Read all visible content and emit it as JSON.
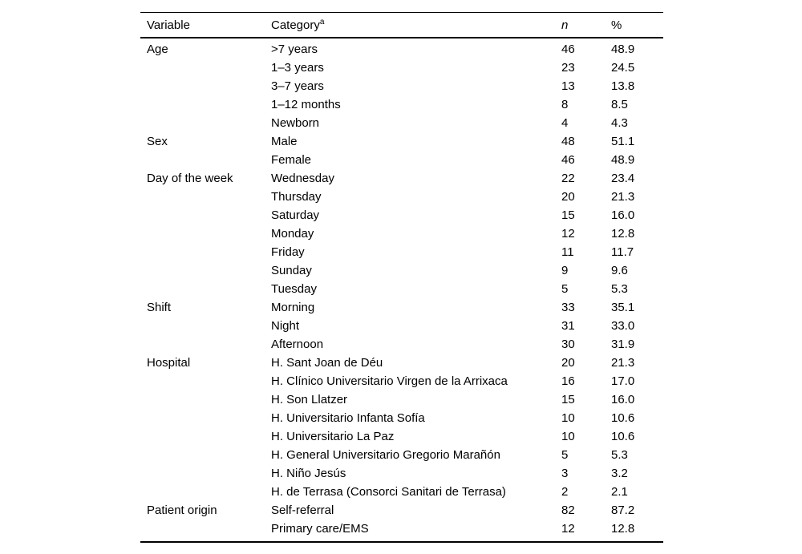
{
  "table": {
    "header": {
      "variable": "Variable",
      "category": "Category",
      "category_superscript": "a",
      "n": "n",
      "pct": "%"
    },
    "rows": [
      {
        "variable": "Age",
        "category": ">7 years",
        "n": "46",
        "pct": "48.9"
      },
      {
        "variable": "",
        "category": "1–3 years",
        "n": "23",
        "pct": "24.5"
      },
      {
        "variable": "",
        "category": "3–7 years",
        "n": "13",
        "pct": "13.8"
      },
      {
        "variable": "",
        "category": "1–12 months",
        "n": "8",
        "pct": "8.5"
      },
      {
        "variable": "",
        "category": "Newborn",
        "n": "4",
        "pct": "4.3"
      },
      {
        "variable": "Sex",
        "category": "Male",
        "n": "48",
        "pct": "51.1"
      },
      {
        "variable": "",
        "category": "Female",
        "n": "46",
        "pct": "48.9"
      },
      {
        "variable": "Day of the week",
        "category": "Wednesday",
        "n": "22",
        "pct": "23.4"
      },
      {
        "variable": "",
        "category": "Thursday",
        "n": "20",
        "pct": "21.3"
      },
      {
        "variable": "",
        "category": "Saturday",
        "n": "15",
        "pct": "16.0"
      },
      {
        "variable": "",
        "category": "Monday",
        "n": "12",
        "pct": "12.8"
      },
      {
        "variable": "",
        "category": "Friday",
        "n": "11",
        "pct": "11.7"
      },
      {
        "variable": "",
        "category": "Sunday",
        "n": "9",
        "pct": "9.6"
      },
      {
        "variable": "",
        "category": "Tuesday",
        "n": "5",
        "pct": "5.3"
      },
      {
        "variable": "Shift",
        "category": "Morning",
        "n": "33",
        "pct": "35.1"
      },
      {
        "variable": "",
        "category": "Night",
        "n": "31",
        "pct": "33.0"
      },
      {
        "variable": "",
        "category": "Afternoon",
        "n": "30",
        "pct": "31.9"
      },
      {
        "variable": "Hospital",
        "category": "H. Sant Joan de Déu",
        "n": "20",
        "pct": "21.3"
      },
      {
        "variable": "",
        "category": "H. Clínico Universitario Virgen de la Arrixaca",
        "n": "16",
        "pct": "17.0"
      },
      {
        "variable": "",
        "category": "H. Son Llatzer",
        "n": "15",
        "pct": "16.0"
      },
      {
        "variable": "",
        "category": "H. Universitario Infanta Sofía",
        "n": "10",
        "pct": "10.6"
      },
      {
        "variable": "",
        "category": "H. Universitario La Paz",
        "n": "10",
        "pct": "10.6"
      },
      {
        "variable": "",
        "category": "H. General Universitario Gregorio Marañón",
        "n": "5",
        "pct": "5.3"
      },
      {
        "variable": "",
        "category": "H. Niño Jesús",
        "n": "3",
        "pct": "3.2"
      },
      {
        "variable": "",
        "category": "H. de Terrasa (Consorci Sanitari de Terrasa)",
        "n": "2",
        "pct": "2.1"
      },
      {
        "variable": "Patient origin",
        "category": "Self-referral",
        "n": "82",
        "pct": "87.2"
      },
      {
        "variable": "",
        "category": "Primary care/EMS",
        "n": "12",
        "pct": "12.8"
      }
    ]
  }
}
